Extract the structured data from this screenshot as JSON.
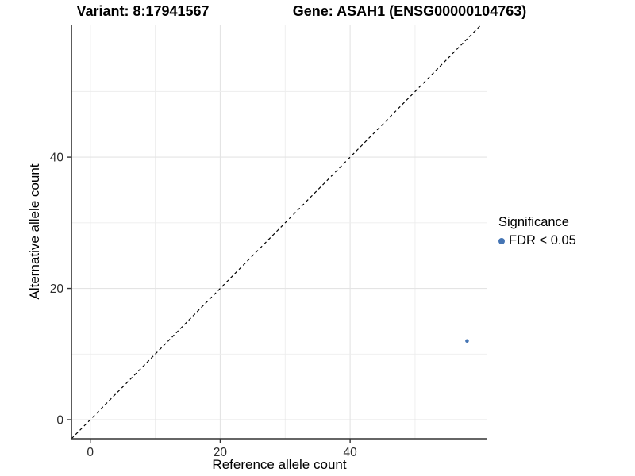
{
  "title": {
    "left": "Variant: 8:17941567",
    "right": "Gene: ASAH1 (ENSG00000104763)"
  },
  "chart_data": {
    "type": "scatter",
    "xlabel": "Reference allele count",
    "ylabel": "Alternative allele count",
    "xlim": [
      -2.9,
      61
    ],
    "ylim": [
      -2.9,
      60.2
    ],
    "xticks": [
      0,
      20,
      40
    ],
    "yticks": [
      0,
      20,
      40
    ],
    "grid_x": [
      0,
      10,
      20,
      30,
      40,
      50
    ],
    "grid_y": [
      0,
      10,
      20,
      30,
      40,
      50
    ],
    "points": [
      {
        "x": 58,
        "y": 12,
        "series": "FDR < 0.05"
      }
    ],
    "identity_line": {
      "type": "y=x",
      "style": "dashed",
      "color": "#000000"
    },
    "legend": {
      "title": "Significance",
      "items": [
        {
          "label": "FDR < 0.05",
          "color": "#4575b4"
        }
      ]
    },
    "colors": {
      "point": "#4575b4",
      "grid_major": "#e4e4e4",
      "grid_minor": "#ededed",
      "axis_line": "#333333",
      "tick_label": "#2b2b2b",
      "background": "#ffffff"
    }
  }
}
